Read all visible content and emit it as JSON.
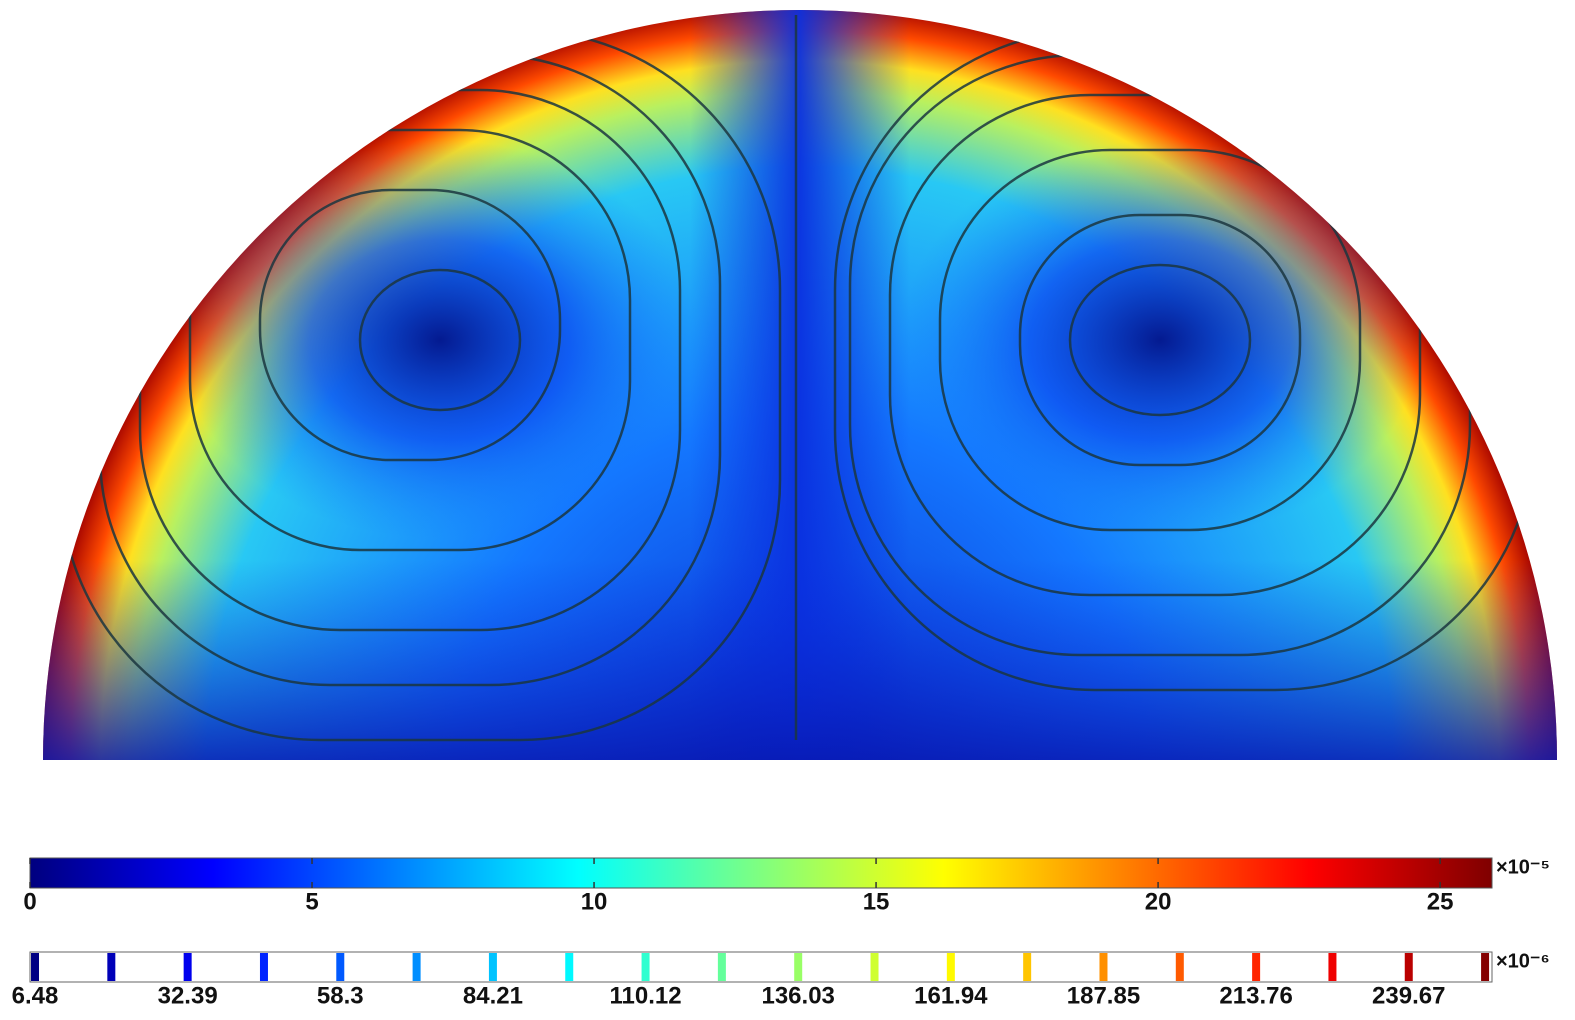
{
  "colorbar": {
    "ticks": [
      0,
      5,
      10,
      15,
      20,
      25
    ],
    "lim": [
      0,
      25.92
    ],
    "multiplier": "×10⁻⁵"
  },
  "contour_legend": {
    "labeled_levels": [
      6.48,
      32.39,
      58.3,
      84.21,
      110.12,
      136.03,
      161.94,
      187.85,
      213.76,
      239.67
    ],
    "intermediate_levels": [
      19.435,
      45.345,
      71.255,
      97.165,
      123.075,
      148.985,
      174.895,
      200.805,
      226.715,
      252.625
    ],
    "lim": [
      5.63,
      253.8
    ],
    "multiplier": "×10⁻⁶"
  }
}
